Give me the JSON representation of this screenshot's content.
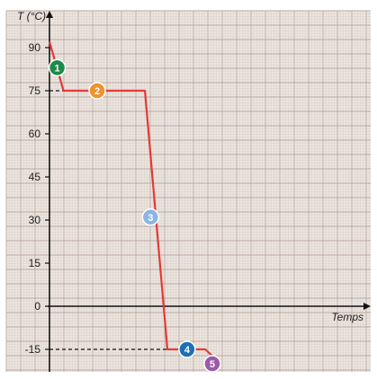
{
  "chart_data": {
    "type": "line",
    "ylabel": "T (°C)",
    "xlabel": "Temps",
    "ylim": [
      -20,
      100
    ],
    "y_ticks": [
      -15,
      0,
      15,
      30,
      45,
      60,
      75,
      90
    ],
    "y_tick_labels": [
      "-15",
      "0",
      "15",
      "30",
      "45",
      "60",
      "75",
      "90"
    ],
    "grid": true,
    "series": [
      {
        "x": [
          0,
          1,
          2,
          6.8,
          8.4,
          11.1,
          12.2
        ],
        "y": [
          92,
          75,
          75,
          75,
          -15,
          -15,
          -20
        ]
      }
    ],
    "reference_lines": [
      {
        "y": 75,
        "style": "dashed"
      },
      {
        "y": -15,
        "style": "dashed"
      }
    ],
    "annotations": [
      {
        "label": "1",
        "x": 0.55,
        "y": 83,
        "color": "#1e8a4a"
      },
      {
        "label": "2",
        "x": 3.4,
        "y": 75,
        "color": "#f0922e"
      },
      {
        "label": "3",
        "x": 7.2,
        "y": 31,
        "color": "#8db4e2"
      },
      {
        "label": "4",
        "x": 9.8,
        "y": -15,
        "color": "#1f6fb5"
      },
      {
        "label": "5",
        "x": 11.6,
        "y": -20,
        "color": "#9b5aa8"
      }
    ],
    "colors": {
      "line": "#e53935",
      "grid_major": "#b8a9a2",
      "grid_minor": "#d8cfc9",
      "background": "#ede5df",
      "axis": "#111111"
    }
  }
}
